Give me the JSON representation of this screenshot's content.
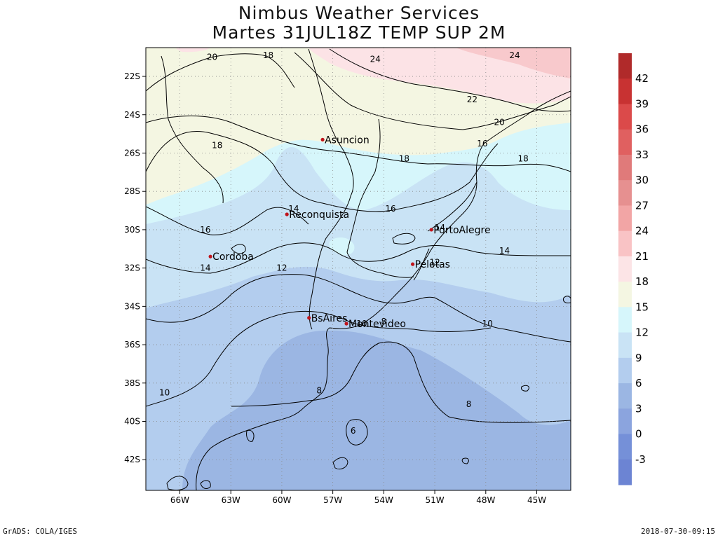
{
  "header": {
    "title": "Nimbus Weather Services",
    "subtitle": "Martes 31JUL18Z TEMP SUP 2M"
  },
  "footer": {
    "software": "GrADS: COLA/IGES",
    "timestamp": "2018-07-30-09:15"
  },
  "map": {
    "lon_range": [
      -68,
      -43
    ],
    "lat_range": [
      -43.6,
      -20.5
    ],
    "lon_ticks": [
      "66W",
      "63W",
      "60W",
      "57W",
      "54W",
      "51W",
      "48W",
      "45W"
    ],
    "lat_ticks": [
      "22S",
      "24S",
      "26S",
      "28S",
      "30S",
      "32S",
      "34S",
      "36S",
      "38S",
      "40S",
      "42S"
    ],
    "grid": "dotted",
    "fill_colors": {
      "very_low": "#9bb6e3",
      "low": "#b3cdee",
      "mid_low": "#c9e3f5",
      "mid": "#d6f6fb",
      "mid_high": "#f4f6e2",
      "high": "#fce3e6",
      "very_high": "#f8c9cc"
    },
    "contour_labels": [
      {
        "text": "20",
        "lon": -64.1,
        "lat": -21.0
      },
      {
        "text": "18",
        "lon": -60.8,
        "lat": -20.9
      },
      {
        "text": "24",
        "lon": -54.5,
        "lat": -21.1
      },
      {
        "text": "24",
        "lon": -46.3,
        "lat": -20.9
      },
      {
        "text": "22",
        "lon": -48.8,
        "lat": -23.2
      },
      {
        "text": "20",
        "lon": -47.2,
        "lat": -24.4
      },
      {
        "text": "18",
        "lon": -63.8,
        "lat": -25.6
      },
      {
        "text": "16",
        "lon": -48.2,
        "lat": -25.5
      },
      {
        "text": "18",
        "lon": -52.8,
        "lat": -26.3
      },
      {
        "text": "18",
        "lon": -45.8,
        "lat": -26.3
      },
      {
        "text": "16",
        "lon": -53.6,
        "lat": -28.9
      },
      {
        "text": "14",
        "lon": -59.3,
        "lat": -28.9
      },
      {
        "text": "16",
        "lon": -64.5,
        "lat": -30.0
      },
      {
        "text": "14",
        "lon": -50.7,
        "lat": -29.9
      },
      {
        "text": "14",
        "lon": -46.9,
        "lat": -31.1
      },
      {
        "text": "14",
        "lon": -64.5,
        "lat": -32.0
      },
      {
        "text": "12",
        "lon": -60.0,
        "lat": -32.0
      },
      {
        "text": "12",
        "lon": -51.0,
        "lat": -31.7
      },
      {
        "text": "10",
        "lon": -55.3,
        "lat": -34.9
      },
      {
        "text": "8",
        "lon": -54.0,
        "lat": -34.8
      },
      {
        "text": "10",
        "lon": -47.9,
        "lat": -34.9
      },
      {
        "text": "8",
        "lon": -57.8,
        "lat": -38.4
      },
      {
        "text": "10",
        "lon": -66.9,
        "lat": -38.5
      },
      {
        "text": "8",
        "lon": -49.0,
        "lat": -39.1
      },
      {
        "text": "6",
        "lon": -55.8,
        "lat": -40.5
      }
    ],
    "cities": [
      {
        "name": "Asuncion",
        "lon": -57.6,
        "lat": -25.3
      },
      {
        "name": "Reconquista",
        "lon": -59.7,
        "lat": -29.2
      },
      {
        "name": "PortoAlegre",
        "lon": -51.2,
        "lat": -30.0
      },
      {
        "name": "Cordoba",
        "lon": -64.2,
        "lat": -31.4
      },
      {
        "name": "Pelotas",
        "lon": -52.3,
        "lat": -31.8
      },
      {
        "name": "BsAires",
        "lon": -58.4,
        "lat": -34.6
      },
      {
        "name": "Montevideo",
        "lon": -56.2,
        "lat": -34.9
      }
    ]
  },
  "colorbar": {
    "labels": [
      "42",
      "39",
      "36",
      "33",
      "30",
      "27",
      "24",
      "21",
      "18",
      "15",
      "12",
      "9",
      "6",
      "3",
      "0",
      "-3"
    ],
    "colors": [
      "#b02a2a",
      "#c83232",
      "#db4a4a",
      "#e06060",
      "#e07a7a",
      "#e69090",
      "#f2a5a5",
      "#f9c3c5",
      "#fce4e6",
      "#f4f6e2",
      "#d6f6fb",
      "#c9e3f5",
      "#b3cdee",
      "#9bb6e3",
      "#8ba4de",
      "#7590d8",
      "#6c84d3"
    ]
  }
}
